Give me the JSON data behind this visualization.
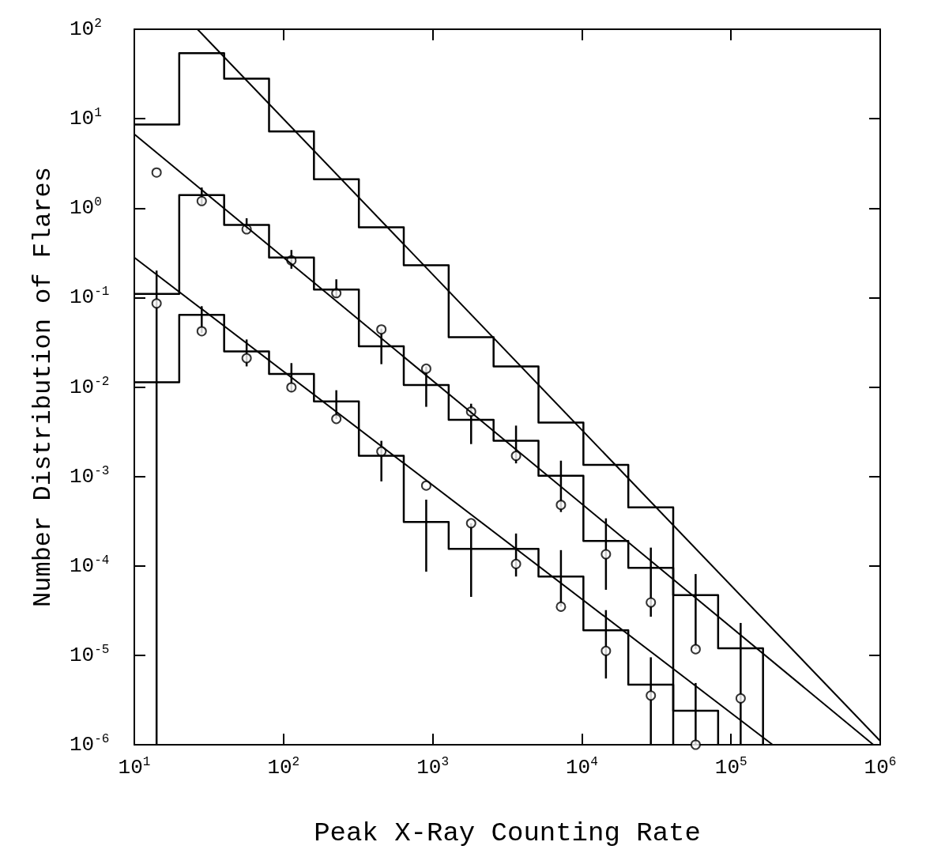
{
  "chart_data": {
    "type": "step",
    "xlabel": "Peak X-Ray Counting Rate",
    "ylabel": "Number Distribution of Flares",
    "log": "xy",
    "grid": false,
    "xlim": [
      10,
      1000000
    ],
    "ylim": [
      1e-06,
      100
    ],
    "xticks": [
      {
        "value": 10,
        "label": "10$^{1}$"
      },
      {
        "value": 100,
        "label": "10$^{2}$"
      },
      {
        "value": 1000,
        "label": "10$^{3}$"
      },
      {
        "value": 10000,
        "label": "10$^{4}$"
      },
      {
        "value": 100000,
        "label": "10$^{5}$"
      },
      {
        "value": 1000000,
        "label": "10$^{6}$"
      }
    ],
    "yticks": [
      {
        "value": 1e-06,
        "label": "10$^{-6}$"
      },
      {
        "value": 1e-05,
        "label": "10$^{-5}$"
      },
      {
        "value": 0.0001,
        "label": "10$^{-4}$"
      },
      {
        "value": 0.001,
        "label": "10$^{-3}$"
      },
      {
        "value": 0.01,
        "label": "10$^{-2}$"
      },
      {
        "value": 0.1,
        "label": "10$^{-1}$"
      },
      {
        "value": 1,
        "label": "10$^{0}$"
      },
      {
        "value": 10,
        "label": "10$^{1}$"
      },
      {
        "value": 100,
        "label": "10$^{2}$"
      }
    ],
    "series": [
      {
        "color": "#000000",
        "x": [
          10,
          20,
          40,
          80,
          160,
          320,
          640,
          1280,
          2560,
          5120,
          10240,
          20480,
          40960,
          81920,
          163840
        ],
        "values": [
          8.6,
          54,
          28,
          7.2,
          2.1,
          0.61,
          0.23,
          0.036,
          0.017,
          0.004,
          0.00135,
          0.00045,
          4.7e-05,
          1.2e-05,
          1e-06
        ]
      },
      {
        "color": "#000000",
        "x": [
          10,
          20,
          40,
          80,
          160,
          320,
          640,
          1280,
          2560,
          5120,
          10240,
          20480,
          40960
        ],
        "values": [
          0.11,
          1.4,
          0.65,
          0.28,
          0.123,
          0.0285,
          0.0105,
          0.0043,
          0.0025,
          0.00102,
          0.00019,
          9.5e-05,
          1e-06
        ]
      },
      {
        "color": "#000000",
        "x": [
          10,
          20,
          40,
          80,
          160,
          320,
          640,
          1280,
          2560,
          5120,
          10240,
          20480,
          40960,
          81920
        ],
        "values": [
          0.0113,
          0.064,
          0.025,
          0.014,
          0.0069,
          0.0017,
          0.00031,
          0.000155,
          0.000155,
          7.6e-05,
          1.9e-05,
          4.7e-06,
          2.4e-06,
          1e-06
        ]
      },
      {
        "type": "scatter",
        "color": "#000000",
        "marker": "circle",
        "x": [
          14.1,
          28.3,
          56.6,
          113,
          226,
          453,
          905,
          1810,
          3620,
          7240,
          14500,
          29000,
          57900,
          116000
        ],
        "values": [
          2.5,
          1.2,
          0.58,
          0.26,
          0.112,
          0.044,
          0.016,
          0.0053,
          0.0017,
          0.00048,
          0.000135,
          3.9e-05,
          1.17e-05,
          3.3e-06
        ],
        "errors": [
          null,
          [
            1.1,
            1.7
          ],
          [
            0.56,
            0.77
          ],
          [
            0.21,
            0.34
          ],
          [
            0.1,
            0.16
          ],
          [
            0.018,
            0.045
          ],
          [
            0.006,
            0.017
          ],
          [
            0.0023,
            0.0065
          ],
          [
            0.0014,
            0.0037
          ],
          [
            0.0004,
            0.0015
          ],
          [
            5.4e-05,
            0.00034
          ],
          [
            2.7e-05,
            0.00016
          ],
          [
            1.17e-05,
            8.1e-05
          ],
          [
            1e-06,
            2.3e-05
          ]
        ]
      },
      {
        "type": "scatter",
        "color": "#000000",
        "marker": "circle",
        "x": [
          14.1,
          28.3,
          56.6,
          113,
          226,
          453,
          905,
          1810,
          3620,
          7240,
          14500,
          29000,
          57900
        ],
        "values": [
          0.086,
          0.042,
          0.021,
          0.0099,
          0.0044,
          0.0019,
          0.00079,
          0.0003,
          0.000105,
          3.5e-05,
          1.12e-05,
          3.55e-06,
          1e-06
        ],
        "errors": [
          [
            1e-06,
            0.2
          ],
          [
            0.04,
            0.08
          ],
          [
            0.017,
            0.034
          ],
          [
            0.0088,
            0.0185
          ],
          [
            0.0044,
            0.0092
          ],
          [
            0.00088,
            0.0025
          ],
          [
            8.6e-05,
            0.00055
          ],
          [
            4.5e-05,
            0.0003
          ],
          [
            7.6e-05,
            0.00023
          ],
          [
            3.5e-05,
            0.00015
          ],
          [
            5.5e-06,
            3.2e-05
          ],
          [
            1e-06,
            9.5e-06
          ],
          [
            1e-06,
            4.9e-06
          ]
        ]
      },
      {
        "type": "line",
        "color": "#000000",
        "x": [
          26.5,
          1000000
        ],
        "values": [
          100,
          1.1e-06
        ]
      },
      {
        "type": "line",
        "color": "#000000",
        "x": [
          10,
          900000
        ],
        "values": [
          6.7,
          1e-06
        ]
      },
      {
        "type": "line",
        "color": "#000000",
        "x": [
          10,
          190000
        ],
        "values": [
          0.28,
          1e-06
        ]
      }
    ]
  }
}
